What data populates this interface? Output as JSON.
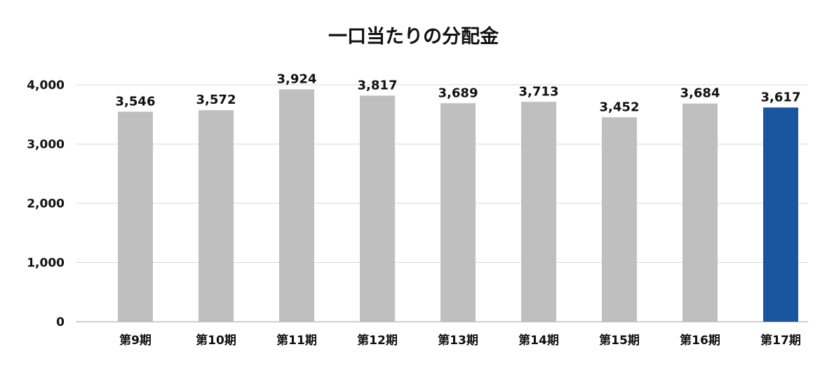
{
  "chart_data": {
    "type": "bar",
    "title": "一口当たりの分配金",
    "xlabel": "",
    "ylabel": "",
    "categories": [
      "第9期",
      "第10期",
      "第11期",
      "第12期",
      "第13期",
      "第14期",
      "第15期",
      "第16期",
      "第17期"
    ],
    "values": [
      3546,
      3572,
      3924,
      3817,
      3689,
      3713,
      3452,
      3684,
      3617
    ],
    "value_labels": [
      "3,546",
      "3,572",
      "3,924",
      "3,817",
      "3,689",
      "3,713",
      "3,452",
      "3,684",
      "3,617"
    ],
    "ylim": [
      0,
      4000
    ],
    "yticks": [
      0,
      1000,
      2000,
      3000,
      4000
    ],
    "ytick_labels": [
      "0",
      "1,000",
      "2,000",
      "3,000",
      "4,000"
    ],
    "grid": true,
    "legend": "none",
    "colors": {
      "default_bar": "#bfbfbf",
      "highlight_bar": "#1a56a0",
      "gridline": "#d9d9d9",
      "axis_line": "#bfbfbf",
      "text": "#111111"
    },
    "highlight_index": 8
  }
}
